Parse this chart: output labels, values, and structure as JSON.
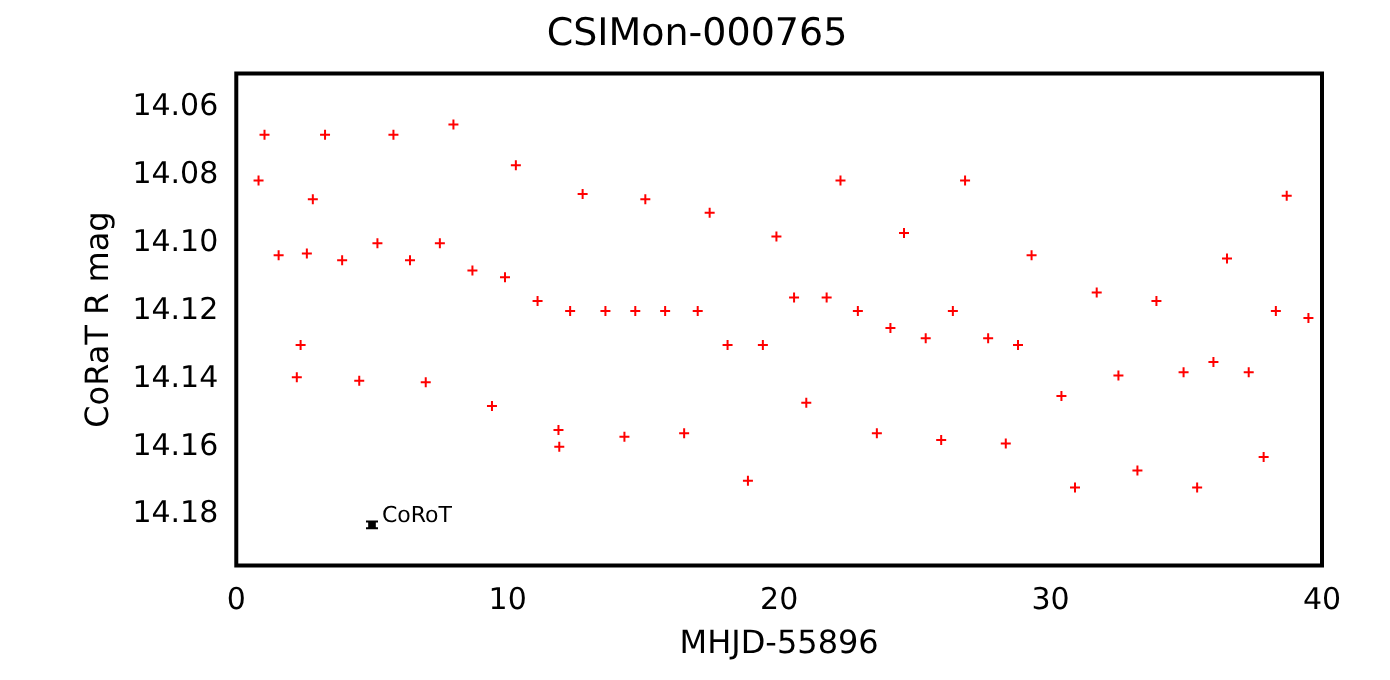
{
  "chart_data": {
    "type": "scatter",
    "title": "CSIMon-000765",
    "xlabel": "MHJD-55896",
    "ylabel": "CoRaT R mag",
    "xlim": [
      0,
      40
    ],
    "xticks": [
      0,
      10,
      20,
      30,
      40
    ],
    "ylim": [
      14.195,
      14.05
    ],
    "yticks": [
      {
        "value": 14.06,
        "label": "14.06"
      },
      {
        "value": 14.08,
        "label": "14.08"
      },
      {
        "value": 14.1,
        "label": "14.10"
      },
      {
        "value": 14.12,
        "label": "14.12"
      },
      {
        "value": 14.14,
        "label": "14.14"
      },
      {
        "value": 14.16,
        "label": "14.16"
      },
      {
        "value": 14.18,
        "label": "14.18"
      }
    ],
    "grid": false,
    "legend": false,
    "marker": "cross",
    "series": [
      {
        "color": "#ff0000",
        "x": [
          0.82,
          1.04,
          1.56,
          2.23,
          2.37,
          2.6,
          2.82,
          3.27,
          3.9,
          4.53,
          5.2,
          5.79,
          6.4,
          6.98,
          7.5,
          8.0,
          8.7,
          9.42,
          9.9,
          10.3,
          11.1,
          11.87,
          11.9,
          12.3,
          12.76,
          13.6,
          14.3,
          14.7,
          15.07,
          15.8,
          16.5,
          17.0,
          17.44,
          18.1,
          18.85,
          19.4,
          19.9,
          20.55,
          21.0,
          21.75,
          22.26,
          22.9,
          23.6,
          24.1,
          24.6,
          25.4,
          25.97,
          26.4,
          26.85,
          27.7,
          28.35,
          28.8,
          29.3,
          30.4,
          30.9,
          31.7,
          32.5,
          33.2,
          33.9,
          34.9,
          35.4,
          36.0,
          36.5,
          37.3,
          37.85,
          38.3,
          38.7,
          39.5
        ],
        "values": [
          14.0815,
          14.068,
          14.1035,
          14.1395,
          14.13,
          14.103,
          14.087,
          14.068,
          14.105,
          14.1405,
          14.1,
          14.068,
          14.105,
          14.141,
          14.1,
          14.065,
          14.108,
          14.148,
          14.11,
          14.077,
          14.117,
          14.155,
          14.16,
          14.12,
          14.0855,
          14.12,
          14.157,
          14.12,
          14.087,
          14.12,
          14.156,
          14.12,
          14.091,
          14.13,
          14.17,
          14.13,
          14.098,
          14.116,
          14.147,
          14.116,
          14.0815,
          14.12,
          14.156,
          14.125,
          14.097,
          14.128,
          14.158,
          14.12,
          14.0815,
          14.128,
          14.159,
          14.13,
          14.1035,
          14.145,
          14.172,
          14.1145,
          14.139,
          14.167,
          14.117,
          14.138,
          14.172,
          14.135,
          14.1045,
          14.138,
          14.163,
          14.12,
          14.086,
          14.122
        ]
      },
      {
        "name": "CoRoT",
        "color": "#000000",
        "marker": "square",
        "x": [
          5.0
        ],
        "values": [
          14.183
        ],
        "errors": [
          0.001
        ]
      }
    ]
  }
}
